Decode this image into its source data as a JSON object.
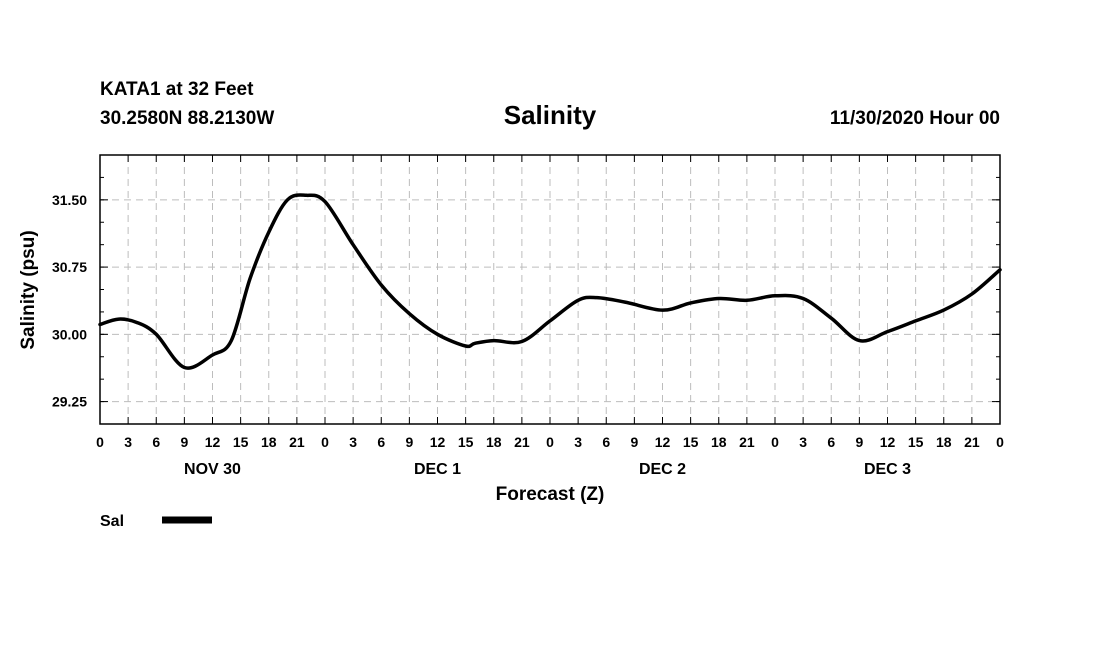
{
  "header": {
    "station": "KATA1 at 32 Feet",
    "coords": "30.2580N 88.2130W",
    "datetime": "11/30/2020 Hour 00"
  },
  "chart_data": {
    "type": "line",
    "title": "Salinity",
    "xlabel": "Forecast (Z)",
    "ylabel": "Salinity (psu)",
    "ylim": [
      29.0,
      32.0
    ],
    "y_ticks": [
      "29.25",
      "30.00",
      "30.75",
      "31.50"
    ],
    "x_ticks": [
      "0",
      "3",
      "6",
      "9",
      "12",
      "15",
      "18",
      "21",
      "0",
      "3",
      "6",
      "9",
      "12",
      "15",
      "18",
      "21",
      "0",
      "3",
      "6",
      "9",
      "12",
      "15",
      "18",
      "21",
      "0",
      "3",
      "6",
      "9",
      "12",
      "15",
      "18",
      "21",
      "0"
    ],
    "day_labels": [
      {
        "label": "NOV 30",
        "hour": 12
      },
      {
        "label": "DEC 1",
        "hour": 36
      },
      {
        "label": "DEC 2",
        "hour": 60
      },
      {
        "label": "DEC 3",
        "hour": 84
      }
    ],
    "grid": true,
    "legend": "bottom-left",
    "series": [
      {
        "name": "Sal",
        "color": "#000000",
        "hours": [
          0,
          2,
          4,
          6,
          9,
          12,
          14,
          16,
          18,
          20,
          22,
          24,
          27,
          30,
          33,
          36,
          39,
          40,
          42,
          45,
          48,
          51,
          53,
          56,
          60,
          63,
          66,
          69,
          72,
          75,
          78,
          81,
          84,
          87,
          90,
          93,
          96
        ],
        "values": [
          30.11,
          30.17,
          30.13,
          30.0,
          29.63,
          29.77,
          29.93,
          30.62,
          31.14,
          31.5,
          31.55,
          31.48,
          31.0,
          30.55,
          30.23,
          30.0,
          29.87,
          29.9,
          29.93,
          29.92,
          30.15,
          30.38,
          30.41,
          30.36,
          30.27,
          30.35,
          30.4,
          30.38,
          30.43,
          30.4,
          30.18,
          29.93,
          30.03,
          30.15,
          30.27,
          30.45,
          30.72
        ]
      }
    ]
  }
}
